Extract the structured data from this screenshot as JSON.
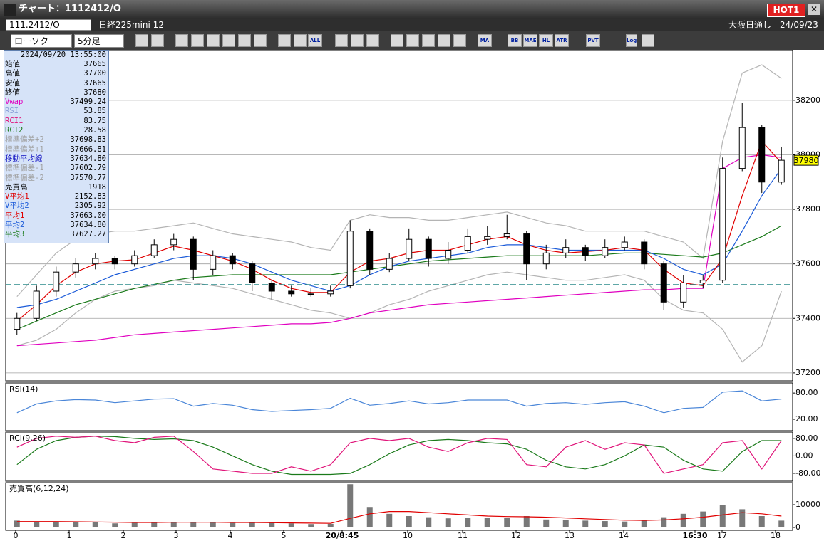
{
  "window": {
    "title": "チャート：1112412/O",
    "hot": "HOT1"
  },
  "header": {
    "symbol": "111.2412/O",
    "name": "日経225mini 12",
    "market": "大阪日通し",
    "date": "24/09/23"
  },
  "toolbar": {
    "chart_type": "ローソク",
    "period": "5分足",
    "buttons": [
      "ALL",
      "MA",
      "BB",
      "MAE",
      "HL",
      "ATR",
      "PVT",
      "Log"
    ]
  },
  "info": {
    "datetime": "2024/09/20 13:55:00",
    "rows": [
      {
        "label": "始値",
        "value": "37665",
        "color": "#000000"
      },
      {
        "label": "高値",
        "value": "37700",
        "color": "#000000"
      },
      {
        "label": "安値",
        "value": "37665",
        "color": "#000000"
      },
      {
        "label": "終値",
        "value": "37680",
        "color": "#000000"
      },
      {
        "label": "Vwap",
        "value": "37499.24",
        "color": "#e000c0"
      },
      {
        "label": "RSI",
        "value": "53.85",
        "color": "#8aa0d8"
      },
      {
        "label": "RCI1",
        "value": "83.75",
        "color": "#e0157a"
      },
      {
        "label": "RCI2",
        "value": "28.58",
        "color": "#1a7a1a"
      },
      {
        "label": "標準偏差+2",
        "value": "37698.83",
        "color": "#a0a0a0"
      },
      {
        "label": "標準偏差+1",
        "value": "37666.81",
        "color": "#a0a0a0"
      },
      {
        "label": "移動平均線",
        "value": "37634.80",
        "color": "#1010c0"
      },
      {
        "label": "標準偏差-1",
        "value": "37602.79",
        "color": "#a0a0a0"
      },
      {
        "label": "標準偏差-2",
        "value": "37570.77",
        "color": "#a0a0a0"
      },
      {
        "label": "売買高",
        "value": "1918",
        "color": "#000000"
      },
      {
        "label": "V平均1",
        "value": "2152.83",
        "color": "#e00000"
      },
      {
        "label": "V平均2",
        "value": "2305.92",
        "color": "#1a5ad8"
      },
      {
        "label": "平均1",
        "value": "37663.00",
        "color": "#e00000"
      },
      {
        "label": "平均2",
        "value": "37634.80",
        "color": "#1a5ad8"
      },
      {
        "label": "平均3",
        "value": "37627.27",
        "color": "#1a7a1a"
      }
    ]
  },
  "x_axis": {
    "labels": [
      "0",
      "1",
      "2",
      "3",
      "4",
      "5",
      "20/8:45",
      "10",
      "11",
      "12",
      "13",
      "14",
      "16:30",
      "17",
      "18"
    ]
  },
  "chart_data": [
    {
      "type": "candlestick",
      "ylim": [
        37171,
        38385
      ],
      "yticks": [
        37200,
        37400,
        37600,
        37800,
        38000,
        38200
      ],
      "grid": true,
      "up_color": "#ffffff",
      "down_color": "#000000",
      "ref_line": 37524,
      "ref_color": "#2a8a8a",
      "last_price": 37980,
      "last_color": "#ffff00",
      "ohlc": [
        [
          37360,
          37420,
          37340,
          37400
        ],
        [
          37400,
          37520,
          37390,
          37500
        ],
        [
          37500,
          37590,
          37480,
          37570
        ],
        [
          37570,
          37620,
          37550,
          37600
        ],
        [
          37600,
          37640,
          37580,
          37620
        ],
        [
          37620,
          37630,
          37580,
          37600
        ],
        [
          37600,
          37650,
          37590,
          37630
        ],
        [
          37630,
          37690,
          37620,
          37670
        ],
        [
          37670,
          37710,
          37650,
          37690
        ],
        [
          37690,
          37700,
          37540,
          37580
        ],
        [
          37580,
          37650,
          37560,
          37630
        ],
        [
          37630,
          37640,
          37580,
          37600
        ],
        [
          37600,
          37610,
          37500,
          37530
        ],
        [
          37530,
          37540,
          37470,
          37500
        ],
        [
          37500,
          37520,
          37480,
          37490
        ],
        [
          37490,
          37510,
          37480,
          37490
        ],
        [
          37490,
          37520,
          37480,
          37500
        ],
        [
          37520,
          37760,
          37510,
          37720
        ],
        [
          37720,
          37730,
          37560,
          37580
        ],
        [
          37580,
          37640,
          37570,
          37620
        ],
        [
          37620,
          37730,
          37610,
          37690
        ],
        [
          37690,
          37700,
          37590,
          37620
        ],
        [
          37620,
          37680,
          37600,
          37650
        ],
        [
          37650,
          37730,
          37640,
          37700
        ],
        [
          37690,
          37740,
          37670,
          37700
        ],
        [
          37700,
          37780,
          37690,
          37710
        ],
        [
          37710,
          37720,
          37540,
          37600
        ],
        [
          37600,
          37670,
          37580,
          37640
        ],
        [
          37640,
          37690,
          37620,
          37660
        ],
        [
          37660,
          37670,
          37610,
          37630
        ],
        [
          37630,
          37690,
          37620,
          37660
        ],
        [
          37660,
          37700,
          37650,
          37680
        ],
        [
          37680,
          37690,
          37580,
          37600
        ],
        [
          37600,
          37610,
          37430,
          37460
        ],
        [
          37460,
          37560,
          37440,
          37530
        ],
        [
          37530,
          37560,
          37510,
          37540
        ],
        [
          37540,
          37990,
          37530,
          37950
        ],
        [
          37950,
          38190,
          37940,
          38100
        ],
        [
          38100,
          38110,
          37860,
          37900
        ],
        [
          37900,
          38030,
          37890,
          37980
        ]
      ],
      "series": [
        {
          "color": "#b4b4b4",
          "values": [
            37480,
            37560,
            37640,
            37690,
            37710,
            37720,
            37720,
            37730,
            37740,
            37750,
            37730,
            37710,
            37700,
            37690,
            37680,
            37660,
            37650,
            37760,
            37780,
            37770,
            37770,
            37760,
            37760,
            37770,
            37780,
            37790,
            37770,
            37750,
            37740,
            37720,
            37720,
            37720,
            37720,
            37700,
            37680,
            37620,
            38050,
            38300,
            38330,
            38280
          ]
        },
        {
          "color": "#b4b4b4",
          "values": [
            37300,
            37320,
            37360,
            37420,
            37470,
            37500,
            37510,
            37520,
            37540,
            37530,
            37520,
            37510,
            37490,
            37470,
            37450,
            37430,
            37420,
            37400,
            37420,
            37450,
            37470,
            37500,
            37520,
            37540,
            37560,
            37570,
            37560,
            37550,
            37540,
            37540,
            37550,
            37560,
            37540,
            37470,
            37430,
            37420,
            37360,
            37240,
            37300,
            37500
          ]
        },
        {
          "color": "#e000c0",
          "values": [
            37300,
            37305,
            37310,
            37315,
            37320,
            37330,
            37340,
            37345,
            37350,
            37355,
            37360,
            37365,
            37370,
            37375,
            37380,
            37380,
            37385,
            37400,
            37420,
            37430,
            37440,
            37450,
            37455,
            37460,
            37465,
            37470,
            37475,
            37480,
            37485,
            37490,
            37495,
            37500,
            37505,
            37505,
            37510,
            37510,
            37950,
            37990,
            38000,
            37990
          ]
        },
        {
          "color": "#1a7a1a",
          "values": [
            37360,
            37390,
            37420,
            37450,
            37470,
            37490,
            37510,
            37525,
            37540,
            37550,
            37555,
            37560,
            37560,
            37560,
            37560,
            37560,
            37560,
            37570,
            37580,
            37590,
            37600,
            37610,
            37615,
            37620,
            37625,
            37630,
            37630,
            37630,
            37630,
            37630,
            37635,
            37640,
            37640,
            37635,
            37630,
            37625,
            37640,
            37670,
            37700,
            37740
          ]
        },
        {
          "color": "#1a5ad8",
          "values": [
            37440,
            37450,
            37470,
            37500,
            37530,
            37560,
            37580,
            37600,
            37620,
            37630,
            37630,
            37620,
            37600,
            37570,
            37540,
            37520,
            37500,
            37520,
            37560,
            37590,
            37610,
            37620,
            37630,
            37640,
            37660,
            37670,
            37670,
            37660,
            37650,
            37650,
            37650,
            37650,
            37650,
            37620,
            37580,
            37560,
            37600,
            37720,
            37850,
            37950
          ]
        },
        {
          "color": "#e00000",
          "values": [
            37390,
            37450,
            37520,
            37570,
            37600,
            37610,
            37615,
            37640,
            37665,
            37650,
            37630,
            37610,
            37580,
            37540,
            37510,
            37495,
            37495,
            37570,
            37610,
            37620,
            37640,
            37650,
            37650,
            37670,
            37690,
            37700,
            37670,
            37650,
            37640,
            37645,
            37650,
            37660,
            37650,
            37580,
            37530,
            37520,
            37620,
            37850,
            38050,
            37970
          ]
        }
      ]
    },
    {
      "type": "line",
      "title": "RSI(14)",
      "ylim": [
        -6,
        103
      ],
      "yticks": [
        {
          "value": 80,
          "label": "80.00"
        },
        {
          "value": 20,
          "label": "20.00"
        }
      ],
      "series": [
        {
          "color": "#4a86d8",
          "values": [
            35,
            55,
            62,
            65,
            64,
            58,
            62,
            66,
            67,
            50,
            56,
            52,
            42,
            38,
            40,
            42,
            45,
            68,
            52,
            56,
            62,
            55,
            58,
            64,
            64,
            64,
            50,
            56,
            58,
            54,
            58,
            60,
            50,
            35,
            45,
            47,
            82,
            85,
            62,
            66
          ]
        }
      ]
    },
    {
      "type": "line",
      "title": "RCI(9,26)",
      "ylim": [
        -116,
        109
      ],
      "yticks": [
        {
          "value": 80,
          "label": "80.00"
        },
        {
          "value": 0,
          "label": "0.00"
        },
        {
          "value": -80,
          "label": "-80.00"
        }
      ],
      "series": [
        {
          "color": "#1a7a1a",
          "values": [
            -40,
            30,
            70,
            85,
            90,
            88,
            80,
            75,
            78,
            70,
            40,
            0,
            -40,
            -70,
            -85,
            -85,
            -85,
            -80,
            -40,
            10,
            50,
            70,
            75,
            70,
            60,
            55,
            30,
            -20,
            -50,
            -60,
            -40,
            0,
            50,
            40,
            -20,
            -60,
            -70,
            20,
            70,
            70
          ]
        },
        {
          "color": "#e0157a",
          "values": [
            40,
            80,
            90,
            85,
            90,
            70,
            60,
            85,
            90,
            20,
            -60,
            -70,
            -80,
            -80,
            -50,
            -70,
            -40,
            60,
            80,
            70,
            80,
            40,
            20,
            60,
            80,
            75,
            -40,
            -50,
            40,
            70,
            30,
            60,
            50,
            -80,
            -60,
            -40,
            60,
            70,
            -60,
            70
          ]
        }
      ]
    },
    {
      "type": "bar",
      "title": "売買高(6,12,24)",
      "ylim": [
        -1250,
        19700
      ],
      "yticks": [
        0,
        10000
      ],
      "color": "#787878",
      "values": [
        3000,
        2500,
        2600,
        2400,
        2200,
        1800,
        2000,
        2300,
        2500,
        2400,
        2200,
        2000,
        2300,
        2100,
        1800,
        1500,
        1600,
        19000,
        9000,
        6000,
        5000,
        4500,
        4000,
        4200,
        4300,
        4100,
        5000,
        3500,
        3200,
        3000,
        2800,
        2600,
        3000,
        4500,
        6000,
        7000,
        10000,
        8000,
        5000,
        3000
      ],
      "series": [
        {
          "color": "#e00000",
          "values": [
            2600,
            2600,
            2600,
            2500,
            2400,
            2300,
            2200,
            2200,
            2300,
            2300,
            2300,
            2200,
            2200,
            2100,
            2000,
            1900,
            1800,
            4000,
            6000,
            7000,
            7000,
            6500,
            6000,
            5500,
            5000,
            4800,
            4700,
            4500,
            4200,
            3800,
            3500,
            3200,
            3100,
            3300,
            3800,
            4500,
            5500,
            6500,
            6000,
            5000
          ]
        }
      ]
    }
  ]
}
